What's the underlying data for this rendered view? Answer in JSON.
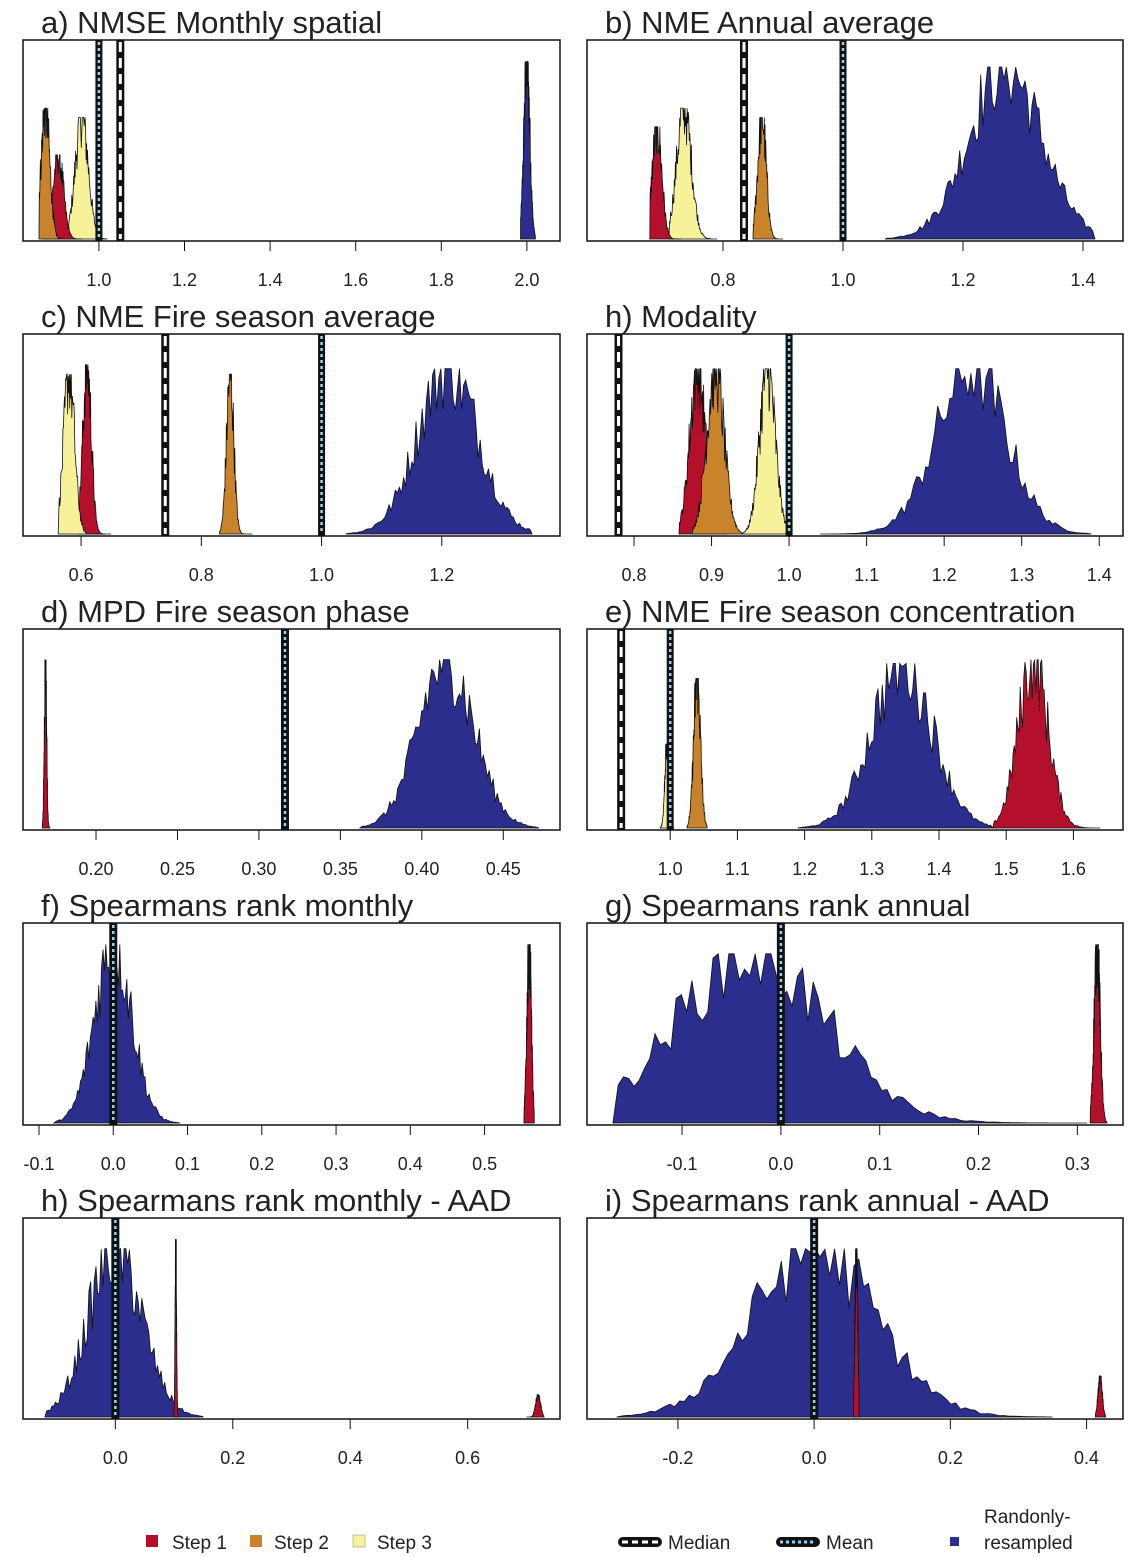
{
  "colors": {
    "step1": "#B5102B",
    "step2": "#C9832A",
    "step3": "#F7F29A",
    "random": "#2B2E8C",
    "median_line": "#111111",
    "mean_dash": "#8FD3F0"
  },
  "legend": {
    "step1": "Step 1",
    "step2": "Step 2",
    "step3": "Step 3",
    "median": "Median",
    "mean": "Mean",
    "random_line1": "Randonly-",
    "random_line2": "resampled"
  },
  "chart_data": [
    {
      "type": "area",
      "title": "a) NMSE Monthly spatial",
      "xlim": [
        0.86,
        2.04
      ],
      "ticks": [
        1.0,
        1.2,
        1.4,
        1.6,
        1.8,
        2.0
      ],
      "tick_labels": [
        "1.0",
        "1.2",
        "1.4",
        "1.6",
        "1.8",
        "2.0"
      ],
      "median": 1.05,
      "mean": 1.0,
      "series": [
        {
          "name": "Randonly-resampled",
          "color": "random",
          "center": 2.0,
          "spread": 0.007,
          "range": [
            1.985,
            2.02
          ],
          "peak": 0.95
        },
        {
          "name": "Step 3",
          "color": "step3",
          "center": 0.96,
          "spread": 0.015,
          "range": [
            0.92,
            1.02
          ],
          "peak": 0.65
        },
        {
          "name": "Step 1",
          "color": "step1",
          "center": 0.905,
          "spread": 0.012,
          "range": [
            0.87,
            0.96
          ],
          "peak": 0.45
        },
        {
          "name": "Step 2",
          "color": "step2",
          "center": 0.875,
          "spread": 0.01,
          "range": [
            0.86,
            0.92
          ],
          "peak": 0.7
        }
      ]
    },
    {
      "type": "area",
      "title": "b) NME Annual average",
      "xlim": [
        0.6,
        1.44
      ],
      "ticks": [
        0.8,
        1.0,
        1.2,
        1.4
      ],
      "tick_labels": [
        "0.8",
        "1.0",
        "1.2",
        "1.4"
      ],
      "median": 0.835,
      "mean": 1.0,
      "series": [
        {
          "name": "Randonly-resampled",
          "color": "random",
          "center": 1.27,
          "spread": 0.06,
          "range": [
            1.07,
            1.42
          ],
          "peak": 0.92
        },
        {
          "name": "Step 3",
          "color": "step3",
          "center": 0.735,
          "spread": 0.012,
          "range": [
            0.71,
            0.79
          ],
          "peak": 0.7
        },
        {
          "name": "Step 1",
          "color": "step1",
          "center": 0.69,
          "spread": 0.008,
          "range": [
            0.678,
            0.73
          ],
          "peak": 0.6
        },
        {
          "name": "Step 2",
          "color": "step2",
          "center": 0.865,
          "spread": 0.007,
          "range": [
            0.85,
            0.9
          ],
          "peak": 0.65
        }
      ]
    },
    {
      "type": "area",
      "title": "c) NME Fire season average",
      "xlim": [
        0.53,
        1.37
      ],
      "ticks": [
        0.6,
        0.8,
        1.0,
        1.2
      ],
      "tick_labels": [
        "0.6",
        "0.8",
        "1.0",
        "1.2"
      ],
      "median": 0.74,
      "mean": 1.0,
      "series": [
        {
          "name": "Randonly-resampled",
          "color": "random",
          "center": 1.21,
          "spread": 0.05,
          "range": [
            1.04,
            1.35
          ],
          "peak": 0.88
        },
        {
          "name": "Step 1",
          "color": "step1",
          "center": 0.61,
          "spread": 0.007,
          "range": [
            0.595,
            0.65
          ],
          "peak": 0.9
        },
        {
          "name": "Step 3",
          "color": "step3",
          "center": 0.58,
          "spread": 0.009,
          "range": [
            0.562,
            0.64
          ],
          "peak": 0.85
        },
        {
          "name": "Step 2",
          "color": "step2",
          "center": 0.848,
          "spread": 0.006,
          "range": [
            0.83,
            0.885
          ],
          "peak": 0.85
        }
      ]
    },
    {
      "type": "area",
      "title": "h) Modality",
      "xlim": [
        0.76,
        1.41
      ],
      "ticks": [
        0.8,
        0.9,
        1.0,
        1.1,
        1.2,
        1.3,
        1.4
      ],
      "tick_labels": [
        "0.8",
        "0.9",
        "1.0",
        "1.1",
        "1.2",
        "1.3",
        "1.4"
      ],
      "median": 0.78,
      "mean": 1.0,
      "series": [
        {
          "name": "Randonly-resampled",
          "color": "random",
          "center": 1.235,
          "spread": 0.045,
          "range": [
            1.04,
            1.39
          ],
          "peak": 0.88
        },
        {
          "name": "Step 1",
          "color": "step1",
          "center": 0.882,
          "spread": 0.01,
          "range": [
            0.858,
            0.92
          ],
          "peak": 0.88
        },
        {
          "name": "Step 2",
          "color": "step2",
          "center": 0.905,
          "spread": 0.011,
          "range": [
            0.875,
            0.94
          ],
          "peak": 0.88
        },
        {
          "name": "Step 3",
          "color": "step3",
          "center": 0.972,
          "spread": 0.01,
          "range": [
            0.94,
            0.998
          ],
          "peak": 0.88
        }
      ]
    },
    {
      "type": "area",
      "title": "d) MPD Fire season phase",
      "xlim": [
        0.165,
        0.475
      ],
      "ticks": [
        0.2,
        0.25,
        0.3,
        0.35,
        0.4,
        0.45
      ],
      "tick_labels": [
        "0.20",
        "0.25",
        "0.30",
        "0.35",
        "0.40",
        "0.45"
      ],
      "median": 0.316,
      "mean": 0.316,
      "series": [
        {
          "name": "Randonly-resampled",
          "color": "random",
          "center": 0.415,
          "spread": 0.017,
          "range": [
            0.362,
            0.472
          ],
          "peak": 0.9
        },
        {
          "name": "Step 1",
          "color": "step1",
          "center": 0.169,
          "spread": 0.0007,
          "range": [
            0.167,
            0.172
          ],
          "peak": 0.9
        }
      ]
    },
    {
      "type": "area",
      "title": "e) NME Fire season concentration",
      "xlim": [
        0.9,
        1.65
      ],
      "ticks": [
        1.0,
        1.1,
        1.2,
        1.3,
        1.4,
        1.5,
        1.6
      ],
      "tick_labels": [
        "1.0",
        "1.1",
        "1.2",
        "1.3",
        "1.4",
        "1.5",
        "1.6"
      ],
      "median": 0.927,
      "mean": 1.0,
      "series": [
        {
          "name": "Randonly-resampled",
          "color": "random",
          "center": 1.345,
          "spread": 0.045,
          "range": [
            1.19,
            1.48
          ],
          "peak": 0.88
        },
        {
          "name": "Step 1",
          "color": "step1",
          "center": 1.54,
          "spread": 0.022,
          "range": [
            1.48,
            1.64
          ],
          "peak": 0.9
        },
        {
          "name": "Step 2",
          "color": "step2",
          "center": 1.04,
          "spread": 0.005,
          "range": [
            1.025,
            1.055
          ],
          "peak": 0.8
        },
        {
          "name": "Step 3",
          "color": "step3",
          "center": 0.995,
          "spread": 0.003,
          "range": [
            0.985,
            1.005
          ],
          "peak": 0.45
        }
      ]
    },
    {
      "type": "area",
      "title": "f) Spearmans rank monthly",
      "xlim": [
        -0.1,
        0.58
      ],
      "ticks": [
        -0.1,
        0.0,
        0.1,
        0.2,
        0.3,
        0.4,
        0.5
      ],
      "tick_labels": [
        "-0.1",
        "0.0",
        "0.1",
        "0.2",
        "0.3",
        "0.4",
        "0.5"
      ],
      "median": 0.0,
      "mean": 0.0,
      "series": [
        {
          "name": "Randonly-resampled",
          "color": "random",
          "center": 0.0,
          "spread": 0.025,
          "range": [
            -0.08,
            0.09
          ],
          "peak": 0.95
        },
        {
          "name": "Step 1",
          "color": "step1",
          "center": 0.56,
          "spread": 0.003,
          "range": [
            0.553,
            0.567
          ],
          "peak": 0.95
        }
      ]
    },
    {
      "type": "area",
      "title": "g) Spearmans rank annual",
      "xlim": [
        -0.18,
        0.33
      ],
      "ticks": [
        -0.1,
        0.0,
        0.1,
        0.2,
        0.3
      ],
      "tick_labels": [
        "-0.1",
        "0.0",
        "0.1",
        "0.2",
        "0.3"
      ],
      "median": 0.0,
      "mean": 0.0,
      "series": [
        {
          "name": "Randonly-resampled",
          "color": "random",
          "center": -0.03,
          "spread": 0.075,
          "range": [
            -0.17,
            0.31
          ],
          "peak": 0.9
        },
        {
          "name": "Step 1",
          "color": "step1",
          "center": 0.32,
          "spread": 0.003,
          "range": [
            0.313,
            0.33
          ],
          "peak": 0.95
        }
      ]
    },
    {
      "type": "area",
      "title": "h) Spearmans rank monthly - AAD",
      "xlim": [
        -0.13,
        0.73
      ],
      "ticks": [
        0.0,
        0.2,
        0.4,
        0.6
      ],
      "tick_labels": [
        "0.0",
        "0.2",
        "0.4",
        "0.6"
      ],
      "median": 0.0,
      "mean": 0.0,
      "series": [
        {
          "name": "Randonly-resampled",
          "color": "random",
          "center": 0.0,
          "spread": 0.045,
          "range": [
            -0.12,
            0.15
          ],
          "peak": 0.9
        },
        {
          "name": "Step 1",
          "color": "step1",
          "center": 0.72,
          "spread": 0.004,
          "range": [
            0.7,
            0.73
          ],
          "peak": 0.12
        },
        {
          "name": "Step 1 (0.1)",
          "color": "step1",
          "center": 0.103,
          "spread": 0.0012,
          "range": [
            0.1,
            0.107
          ],
          "peak": 0.95
        }
      ]
    },
    {
      "type": "area",
      "title": "i) Spearmans rank annual - AAD",
      "xlim": [
        -0.31,
        0.43
      ],
      "ticks": [
        -0.2,
        0.0,
        0.2,
        0.4
      ],
      "tick_labels": [
        "-0.2",
        "0.0",
        "0.2",
        "0.4"
      ],
      "median": 0.0,
      "mean": 0.0,
      "series": [
        {
          "name": "Randonly-resampled",
          "color": "random",
          "center": 0.0,
          "spread": 0.09,
          "range": [
            -0.29,
            0.35
          ],
          "peak": 0.9
        },
        {
          "name": "Step 1",
          "color": "step1",
          "center": 0.062,
          "spread": 0.002,
          "range": [
            0.058,
            0.066
          ],
          "peak": 0.9
        },
        {
          "name": "Step 1 (0.42)",
          "color": "step1",
          "center": 0.42,
          "spread": 0.003,
          "range": [
            0.413,
            0.428
          ],
          "peak": 0.22
        }
      ]
    }
  ]
}
